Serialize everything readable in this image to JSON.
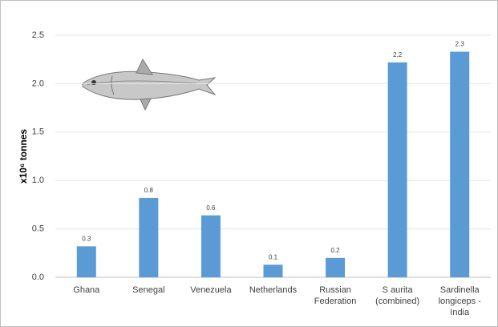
{
  "chart_data": {
    "type": "bar",
    "y_label": "x10⁶ tonnes",
    "categories": [
      "Ghana",
      "Senegal",
      "Venezuela",
      "Netherlands",
      "Russian Federation",
      "S aurita (combined)",
      "Sardinella longiceps - India"
    ],
    "values": [
      0.32,
      0.82,
      0.64,
      0.13,
      0.2,
      2.22,
      2.33
    ],
    "value_labels": [
      "0.3",
      "0.8",
      "0.6",
      "0.1",
      "0.2",
      "2.2",
      "2.3"
    ],
    "color": "#5b9bd5",
    "ylim": [
      0,
      2.5
    ],
    "yticks": [
      {
        "value": 0,
        "label": "0.0"
      },
      0.5,
      {
        "value": 1,
        "label": "1.0"
      },
      1.5,
      {
        "value": 2,
        "label": "2.0"
      },
      2.5
    ],
    "grid": true
  }
}
